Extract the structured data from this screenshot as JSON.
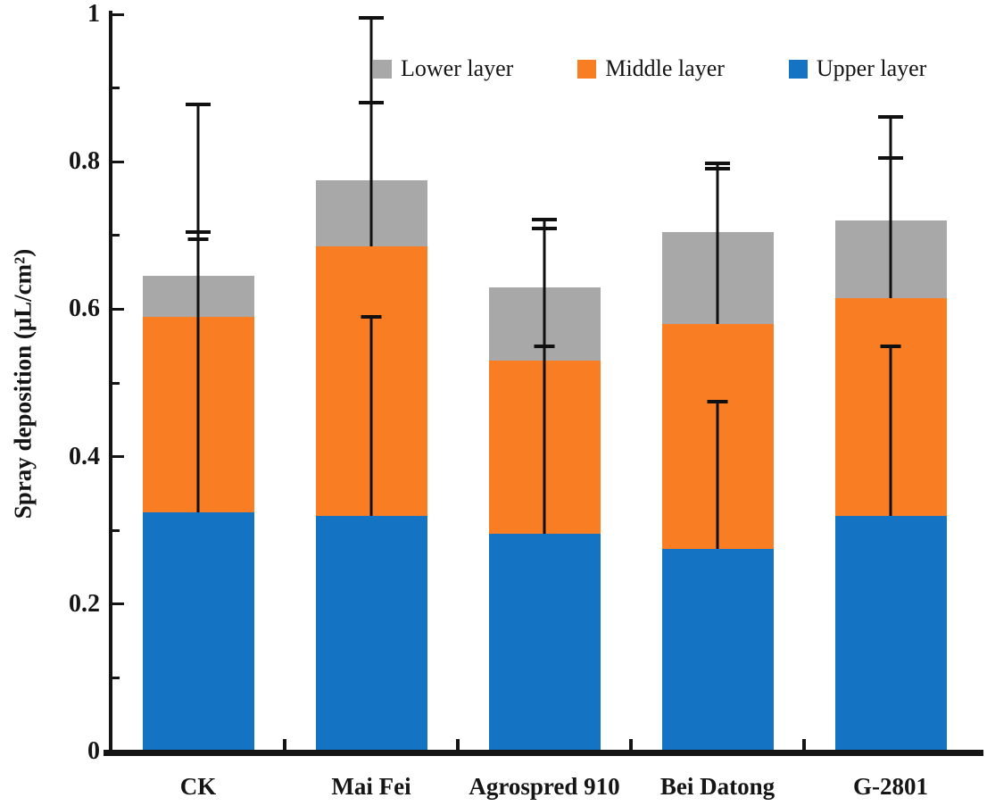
{
  "figure": {
    "kind": "stacked-bar-chart-image"
  },
  "colors": {
    "upper_layer": "#1573C4",
    "middle_layer": "#F97D23",
    "lower_layer": "#A8A8A8",
    "axis": "#151515",
    "background": "#ffffff"
  },
  "legend": {
    "items": [
      {
        "label": "Lower layer",
        "color": "#A8A8A8"
      },
      {
        "label": "Middle layer",
        "color": "#F97D23"
      },
      {
        "label": "Upper layer",
        "color": "#1573C4"
      }
    ]
  },
  "y_axis": {
    "label": "Spray deposition (μL/cm²)",
    "min": 0,
    "max": 1,
    "major_tick_labels": [
      "0",
      "0.2",
      "0.4",
      "0.6",
      "0.8",
      "1"
    ],
    "minor_step": 0.1,
    "major_step": 0.2
  },
  "chart_data": {
    "type": "bar",
    "stacked": true,
    "title": "",
    "xlabel": "",
    "ylabel": "Spray deposition (μL/cm²)",
    "ylim": [
      0,
      1
    ],
    "grid": false,
    "legend_position": "top",
    "categories": [
      "CK",
      "Mai Fei",
      "Agrospred 910",
      "Bei Datong",
      "G-2801"
    ],
    "series": [
      {
        "name": "Upper layer",
        "color": "#1573C4",
        "values": [
          0.325,
          0.32,
          0.295,
          0.275,
          0.32
        ],
        "error_bar_top_absolute": [
          0.695,
          0.59,
          0.55,
          0.475,
          0.55
        ]
      },
      {
        "name": "Middle layer",
        "color": "#F97D23",
        "values": [
          0.265,
          0.365,
          0.235,
          0.305,
          0.295
        ],
        "error_bar_top_absolute": [
          0.705,
          0.88,
          0.71,
          0.79,
          0.805
        ]
      },
      {
        "name": "Lower layer",
        "color": "#A8A8A8",
        "values": [
          0.055,
          0.09,
          0.1,
          0.125,
          0.105
        ],
        "error_bar_top_absolute": [
          0.878,
          0.995,
          0.722,
          0.798,
          0.861
        ]
      }
    ],
    "stack_totals": [
      0.645,
      0.775,
      0.63,
      0.705,
      0.72
    ]
  }
}
